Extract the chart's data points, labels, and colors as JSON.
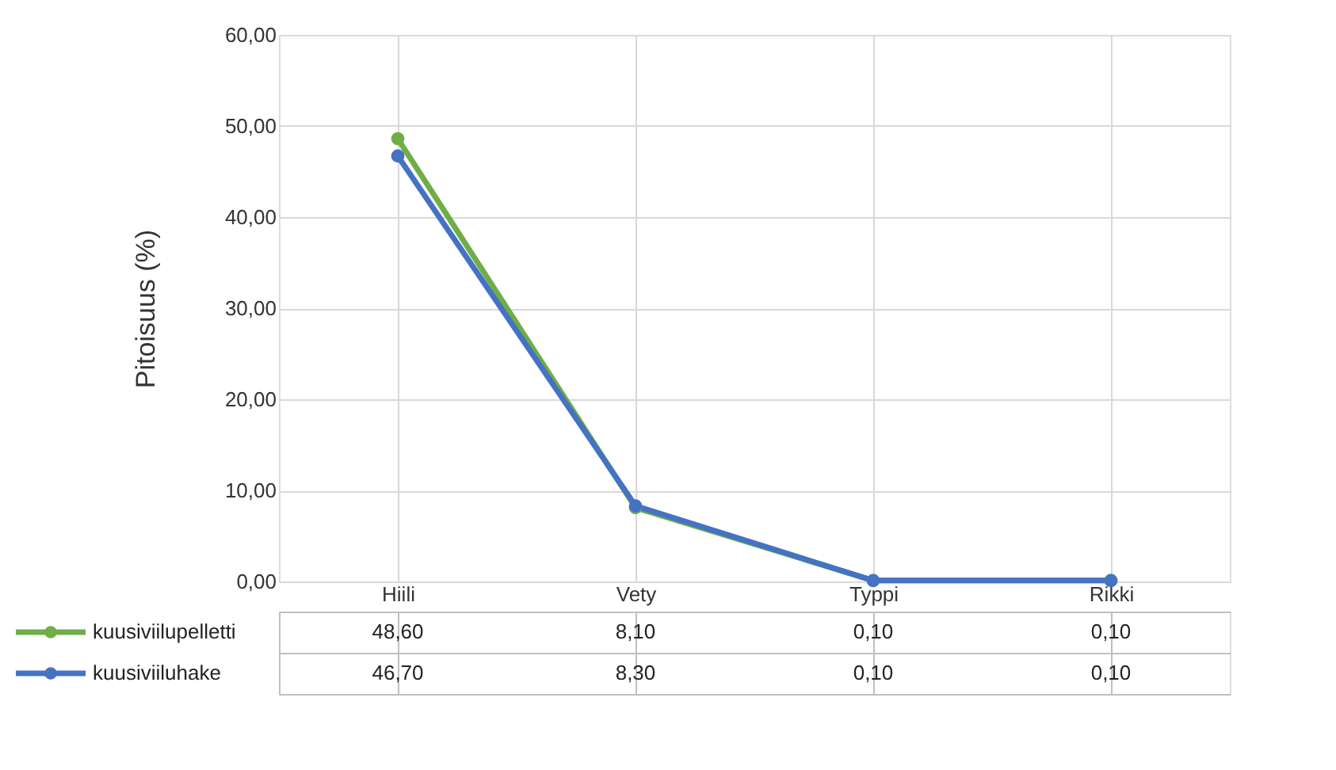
{
  "chart_data": {
    "type": "line",
    "ylabel": "Pitoisuus (%)",
    "categories": [
      "Hiili",
      "Vety",
      "Typpi",
      "Rikki"
    ],
    "series": [
      {
        "name": "kuusiviilupelletti",
        "color": "#70ad47",
        "values": [
          48.6,
          8.1,
          0.1,
          0.1
        ],
        "value_labels": [
          "48,60",
          "8,10",
          "0,10",
          "0,10"
        ]
      },
      {
        "name": "kuusiviiluhake",
        "color": "#4472c4",
        "values": [
          46.7,
          8.3,
          0.1,
          0.1
        ],
        "value_labels": [
          "46,70",
          "8,30",
          "0,10",
          "0,10"
        ]
      }
    ],
    "ylim": [
      0,
      60
    ],
    "yticks": [
      {
        "value": 0,
        "label": "0,00"
      },
      {
        "value": 10,
        "label": "10,00"
      },
      {
        "value": 20,
        "label": "20,00"
      },
      {
        "value": 30,
        "label": "30,00"
      },
      {
        "value": 40,
        "label": "40,00"
      },
      {
        "value": 50,
        "label": "50,00"
      },
      {
        "value": 60,
        "label": "60,00"
      }
    ],
    "grid": true,
    "legend": "bottom",
    "marker": "circle",
    "line_style": "solid"
  }
}
